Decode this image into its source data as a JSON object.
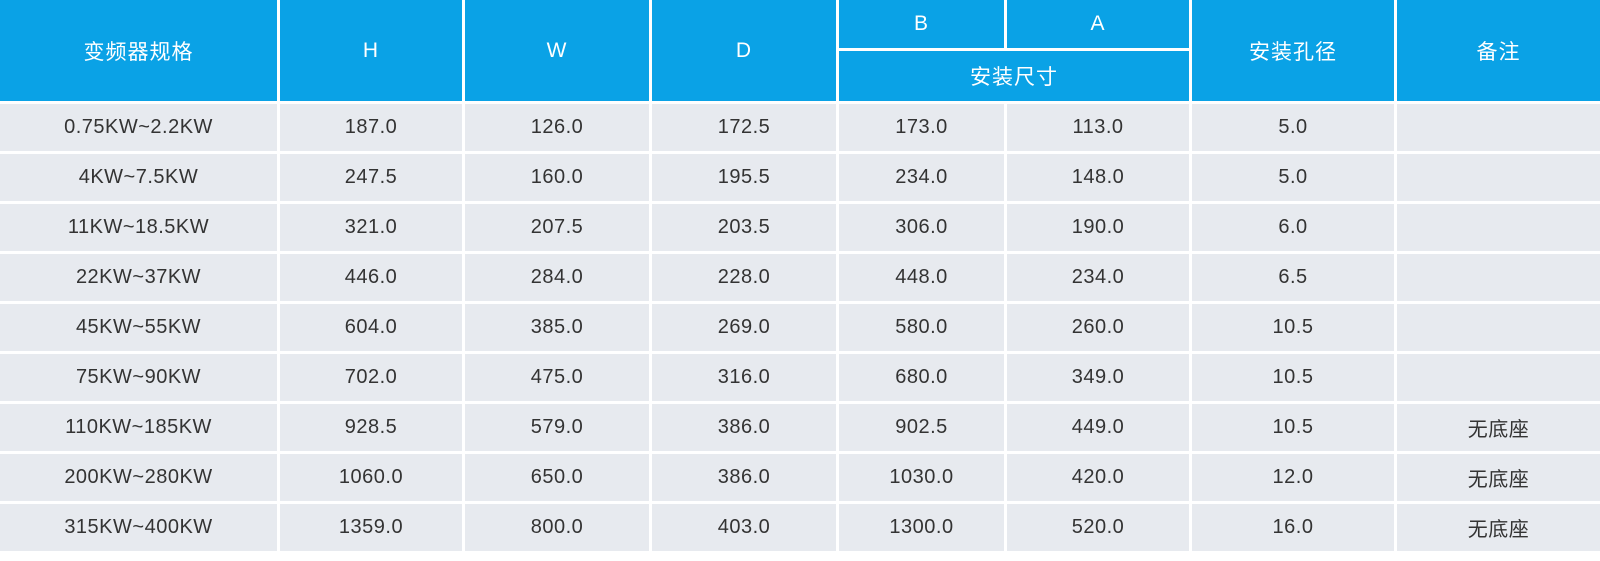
{
  "colors": {
    "header_bg": "#0aa2e6",
    "header_text": "#ffffff",
    "row_bg": "#e7eaef",
    "cell_text": "#333333",
    "separator": "#ffffff"
  },
  "table": {
    "headers": {
      "spec": "变频器规格",
      "h": "H",
      "w": "W",
      "d": "D",
      "b": "B",
      "a": "A",
      "mounting_dims": "安装尺寸",
      "hole_diameter": "安装孔径",
      "remarks": "备注"
    },
    "rows": [
      {
        "spec": "0.75KW~2.2KW",
        "h": "187.0",
        "w": "126.0",
        "d": "172.5",
        "b": "173.0",
        "a": "113.0",
        "hole": "5.0",
        "remark": ""
      },
      {
        "spec": "4KW~7.5KW",
        "h": "247.5",
        "w": "160.0",
        "d": "195.5",
        "b": "234.0",
        "a": "148.0",
        "hole": "5.0",
        "remark": ""
      },
      {
        "spec": "11KW~18.5KW",
        "h": "321.0",
        "w": "207.5",
        "d": "203.5",
        "b": "306.0",
        "a": "190.0",
        "hole": "6.0",
        "remark": ""
      },
      {
        "spec": "22KW~37KW",
        "h": "446.0",
        "w": "284.0",
        "d": "228.0",
        "b": "448.0",
        "a": "234.0",
        "hole": "6.5",
        "remark": ""
      },
      {
        "spec": "45KW~55KW",
        "h": "604.0",
        "w": "385.0",
        "d": "269.0",
        "b": "580.0",
        "a": "260.0",
        "hole": "10.5",
        "remark": ""
      },
      {
        "spec": "75KW~90KW",
        "h": "702.0",
        "w": "475.0",
        "d": "316.0",
        "b": "680.0",
        "a": "349.0",
        "hole": "10.5",
        "remark": ""
      },
      {
        "spec": "110KW~185KW",
        "h": "928.5",
        "w": "579.0",
        "d": "386.0",
        "b": "902.5",
        "a": "449.0",
        "hole": "10.5",
        "remark": "无底座"
      },
      {
        "spec": "200KW~280KW",
        "h": "1060.0",
        "w": "650.0",
        "d": "386.0",
        "b": "1030.0",
        "a": "420.0",
        "hole": "12.0",
        "remark": "无底座"
      },
      {
        "spec": "315KW~400KW",
        "h": "1359.0",
        "w": "800.0",
        "d": "403.0",
        "b": "1300.0",
        "a": "520.0",
        "hole": "16.0",
        "remark": "无底座"
      }
    ]
  }
}
